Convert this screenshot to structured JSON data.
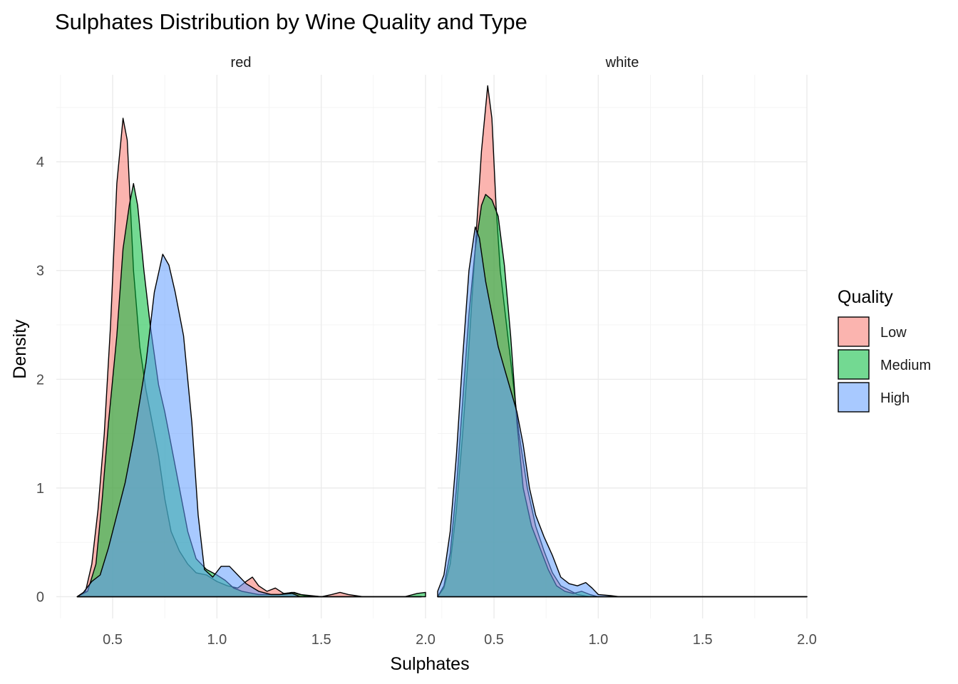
{
  "chart_data": {
    "type": "area",
    "title": "Sulphates Distribution by Wine Quality and Type",
    "xlabel": "Sulphates",
    "ylabel": "Density",
    "xlim": [
      0.23,
      2.0
    ],
    "ylim": [
      -0.2,
      4.8
    ],
    "x_ticks": [
      0.5,
      1.0,
      1.5,
      2.0
    ],
    "x_tick_labels": [
      "0.5",
      "1.0",
      "1.5",
      "2.0"
    ],
    "y_ticks": [
      0,
      1,
      2,
      3,
      4
    ],
    "y_tick_labels": [
      "0",
      "1",
      "2",
      "3",
      "4"
    ],
    "grid": true,
    "legend": {
      "title": "Quality",
      "placement": "right",
      "entries": [
        {
          "name": "Low",
          "color": "#F8766D"
        },
        {
          "name": "Medium",
          "color": "#00BA38"
        },
        {
          "name": "High",
          "color": "#619CFF"
        }
      ]
    },
    "panels": [
      {
        "label": "red",
        "series": [
          {
            "name": "Low",
            "color": "#F8766D",
            "points": [
              [
                0.33,
                0.0
              ],
              [
                0.37,
                0.05
              ],
              [
                0.4,
                0.3
              ],
              [
                0.43,
                0.8
              ],
              [
                0.46,
                1.5
              ],
              [
                0.49,
                2.5
              ],
              [
                0.52,
                3.8
              ],
              [
                0.55,
                4.4
              ],
              [
                0.57,
                4.2
              ],
              [
                0.6,
                3.0
              ],
              [
                0.63,
                2.3
              ],
              [
                0.66,
                1.9
              ],
              [
                0.69,
                1.6
              ],
              [
                0.72,
                1.3
              ],
              [
                0.75,
                0.9
              ],
              [
                0.78,
                0.6
              ],
              [
                0.82,
                0.42
              ],
              [
                0.86,
                0.3
              ],
              [
                0.9,
                0.22
              ],
              [
                0.95,
                0.2
              ],
              [
                1.0,
                0.14
              ],
              [
                1.05,
                0.1
              ],
              [
                1.1,
                0.08
              ],
              [
                1.14,
                0.14
              ],
              [
                1.17,
                0.18
              ],
              [
                1.2,
                0.1
              ],
              [
                1.24,
                0.05
              ],
              [
                1.28,
                0.08
              ],
              [
                1.32,
                0.03
              ],
              [
                1.37,
                0.04
              ],
              [
                1.42,
                0.01
              ],
              [
                1.5,
                0.0
              ],
              [
                1.55,
                0.02
              ],
              [
                1.59,
                0.04
              ],
              [
                1.63,
                0.02
              ],
              [
                1.7,
                0.0
              ],
              [
                1.98,
                0.0
              ]
            ]
          },
          {
            "name": "Medium",
            "color": "#00BA38",
            "points": [
              [
                0.33,
                0.0
              ],
              [
                0.38,
                0.05
              ],
              [
                0.42,
                0.3
              ],
              [
                0.45,
                0.9
              ],
              [
                0.48,
                1.6
              ],
              [
                0.52,
                2.4
              ],
              [
                0.55,
                3.2
              ],
              [
                0.58,
                3.6
              ],
              [
                0.6,
                3.8
              ],
              [
                0.62,
                3.6
              ],
              [
                0.65,
                3.0
              ],
              [
                0.68,
                2.5
              ],
              [
                0.72,
                1.95
              ],
              [
                0.75,
                1.7
              ],
              [
                0.78,
                1.4
              ],
              [
                0.82,
                1.0
              ],
              [
                0.86,
                0.6
              ],
              [
                0.9,
                0.35
              ],
              [
                0.95,
                0.25
              ],
              [
                1.0,
                0.2
              ],
              [
                1.04,
                0.15
              ],
              [
                1.08,
                0.08
              ],
              [
                1.12,
                0.05
              ],
              [
                1.2,
                0.02
              ],
              [
                1.3,
                0.02
              ],
              [
                1.36,
                0.04
              ],
              [
                1.4,
                0.02
              ],
              [
                1.5,
                0.0
              ],
              [
                1.9,
                0.0
              ],
              [
                1.96,
                0.03
              ],
              [
                2.0,
                0.04
              ]
            ]
          },
          {
            "name": "High",
            "color": "#619CFF",
            "points": [
              [
                0.33,
                0.0
              ],
              [
                0.36,
                0.04
              ],
              [
                0.4,
                0.14
              ],
              [
                0.44,
                0.2
              ],
              [
                0.48,
                0.45
              ],
              [
                0.52,
                0.75
              ],
              [
                0.56,
                1.05
              ],
              [
                0.6,
                1.45
              ],
              [
                0.63,
                1.8
              ],
              [
                0.66,
                2.15
              ],
              [
                0.7,
                2.8
              ],
              [
                0.74,
                3.15
              ],
              [
                0.77,
                3.05
              ],
              [
                0.8,
                2.8
              ],
              [
                0.84,
                2.4
              ],
              [
                0.88,
                1.6
              ],
              [
                0.91,
                0.75
              ],
              [
                0.94,
                0.25
              ],
              [
                0.98,
                0.18
              ],
              [
                1.02,
                0.28
              ],
              [
                1.06,
                0.28
              ],
              [
                1.1,
                0.2
              ],
              [
                1.14,
                0.12
              ],
              [
                1.2,
                0.05
              ],
              [
                1.26,
                0.02
              ],
              [
                1.3,
                0.02
              ],
              [
                1.36,
                0.03
              ],
              [
                1.4,
                0.0
              ],
              [
                1.98,
                0.0
              ]
            ]
          }
        ]
      },
      {
        "label": "white",
        "series": [
          {
            "name": "Low",
            "color": "#F8766D",
            "points": [
              [
                0.23,
                0.0
              ],
              [
                0.26,
                0.08
              ],
              [
                0.29,
                0.3
              ],
              [
                0.32,
                0.8
              ],
              [
                0.35,
                1.5
              ],
              [
                0.38,
                2.3
              ],
              [
                0.41,
                3.2
              ],
              [
                0.44,
                4.1
              ],
              [
                0.47,
                4.7
              ],
              [
                0.49,
                4.4
              ],
              [
                0.51,
                3.6
              ],
              [
                0.53,
                3.0
              ],
              [
                0.56,
                2.5
              ],
              [
                0.59,
                2.0
              ],
              [
                0.62,
                1.5
              ],
              [
                0.66,
                1.0
              ],
              [
                0.7,
                0.65
              ],
              [
                0.74,
                0.42
              ],
              [
                0.78,
                0.22
              ],
              [
                0.82,
                0.1
              ],
              [
                0.86,
                0.06
              ],
              [
                0.9,
                0.02
              ],
              [
                0.96,
                0.0
              ],
              [
                2.0,
                0.0
              ]
            ]
          },
          {
            "name": "Medium",
            "color": "#00BA38",
            "points": [
              [
                0.23,
                0.0
              ],
              [
                0.26,
                0.1
              ],
              [
                0.29,
                0.4
              ],
              [
                0.32,
                1.0
              ],
              [
                0.35,
                1.8
              ],
              [
                0.38,
                2.6
              ],
              [
                0.41,
                3.2
              ],
              [
                0.44,
                3.6
              ],
              [
                0.46,
                3.7
              ],
              [
                0.49,
                3.65
              ],
              [
                0.52,
                3.5
              ],
              [
                0.55,
                3.05
              ],
              [
                0.58,
                2.4
              ],
              [
                0.61,
                1.6
              ],
              [
                0.64,
                1.0
              ],
              [
                0.68,
                0.65
              ],
              [
                0.72,
                0.45
              ],
              [
                0.76,
                0.25
              ],
              [
                0.8,
                0.1
              ],
              [
                0.84,
                0.05
              ],
              [
                0.88,
                0.03
              ],
              [
                0.92,
                0.05
              ],
              [
                0.96,
                0.02
              ],
              [
                1.0,
                0.0
              ],
              [
                2.0,
                0.0
              ]
            ]
          },
          {
            "name": "High",
            "color": "#619CFF",
            "points": [
              [
                0.23,
                0.05
              ],
              [
                0.26,
                0.2
              ],
              [
                0.29,
                0.6
              ],
              [
                0.32,
                1.3
              ],
              [
                0.35,
                2.2
              ],
              [
                0.38,
                3.0
              ],
              [
                0.41,
                3.4
              ],
              [
                0.43,
                3.3
              ],
              [
                0.46,
                2.9
              ],
              [
                0.49,
                2.6
              ],
              [
                0.52,
                2.3
              ],
              [
                0.55,
                2.1
              ],
              [
                0.58,
                1.9
              ],
              [
                0.61,
                1.7
              ],
              [
                0.64,
                1.4
              ],
              [
                0.67,
                1.0
              ],
              [
                0.7,
                0.75
              ],
              [
                0.74,
                0.55
              ],
              [
                0.78,
                0.38
              ],
              [
                0.82,
                0.18
              ],
              [
                0.86,
                0.12
              ],
              [
                0.9,
                0.1
              ],
              [
                0.94,
                0.13
              ],
              [
                0.97,
                0.08
              ],
              [
                1.0,
                0.02
              ],
              [
                1.06,
                0.01
              ],
              [
                1.1,
                0.0
              ],
              [
                2.0,
                0.0
              ]
            ]
          }
        ]
      }
    ]
  }
}
